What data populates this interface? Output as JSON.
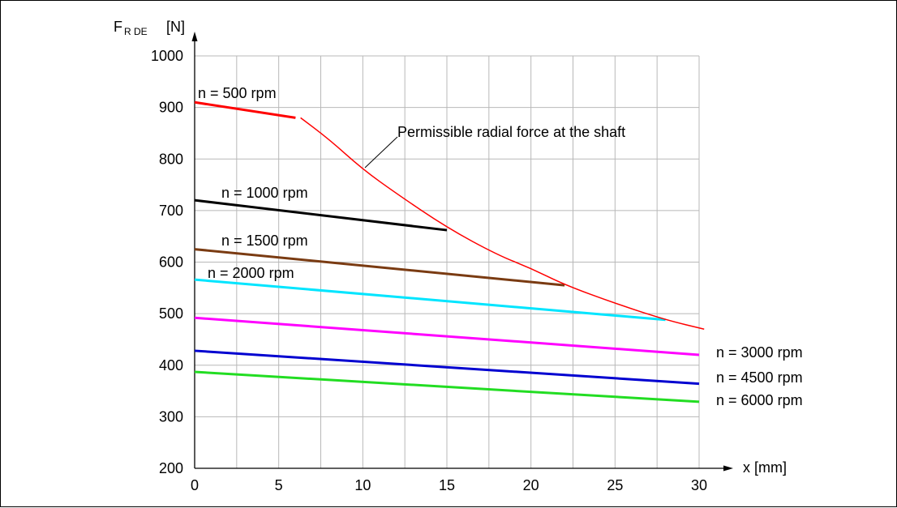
{
  "chart_data": {
    "type": "line",
    "ylabel_main": "F",
    "ylabel_sub": "R DE",
    "ylabel_unit": "[N]",
    "xlabel": "x [mm]",
    "xlim": [
      0,
      30
    ],
    "ylim": [
      200,
      1000
    ],
    "x_ticks": [
      "0",
      "5",
      "10",
      "15",
      "20",
      "25",
      "30"
    ],
    "y_ticks": [
      "200",
      "300",
      "400",
      "500",
      "600",
      "700",
      "800",
      "900",
      "1000"
    ],
    "grid": true,
    "series": [
      {
        "name": "n = 500 rpm",
        "color": "#ff0000",
        "x": [
          0,
          6
        ],
        "y": [
          910,
          880
        ]
      },
      {
        "name": "n = 1000 rpm",
        "color": "#000000",
        "x": [
          0,
          15
        ],
        "y": [
          720,
          662
        ]
      },
      {
        "name": "n = 1500 rpm",
        "color": "#7a3b12",
        "x": [
          0,
          22
        ],
        "y": [
          625,
          555
        ]
      },
      {
        "name": "n = 2000 rpm",
        "color": "#00e5ff",
        "x": [
          0,
          28
        ],
        "y": [
          566,
          488
        ]
      },
      {
        "name": "n = 3000 rpm",
        "color": "#ff00ff",
        "x": [
          0,
          30
        ],
        "y": [
          492,
          420
        ]
      },
      {
        "name": "n = 4500 rpm",
        "color": "#0000d0",
        "x": [
          0,
          30
        ],
        "y": [
          428,
          364
        ]
      },
      {
        "name": "n = 6000 rpm",
        "color": "#22dd22",
        "x": [
          0,
          30
        ],
        "y": [
          387,
          329
        ]
      }
    ],
    "limit_curve": {
      "label": "Permissible radial force at the shaft",
      "color": "#ff0000",
      "x": [
        6.3,
        8,
        10,
        12,
        15,
        18,
        20,
        22,
        25,
        28,
        30.3
      ],
      "y": [
        880,
        838,
        780,
        733,
        667,
        614,
        588,
        556,
        520,
        488,
        470
      ]
    }
  }
}
